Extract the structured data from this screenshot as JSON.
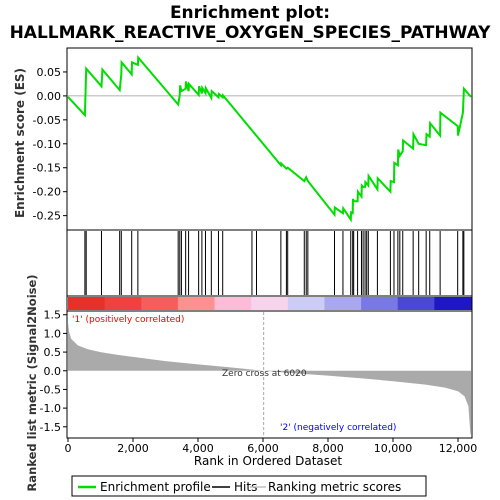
{
  "chart_data": {
    "type": "line",
    "title_line1": "Enrichment plot:",
    "title_line2": "HALLMARK_REACTIVE_OXYGEN_SPECIES_PATHWAY",
    "ylabel_top": "Enrichment score (ES)",
    "ylabel_bottom": "Ranked list metric (Signal2Noise)",
    "xlabel": "Rank in Ordered Dataset",
    "xlim": [
      0,
      12400
    ],
    "es_ylim": [
      -0.28,
      0.1
    ],
    "metric_ylim": [
      -1.8,
      1.6
    ],
    "x_ticks": [
      "0",
      "2,000",
      "4,000",
      "6,000",
      "8,000",
      "10,000",
      "12,000"
    ],
    "x_tick_values": [
      0,
      2000,
      4000,
      6000,
      8000,
      10000,
      12000
    ],
    "es_ticks": [
      "0.05",
      "0.00",
      "-0.05",
      "-0.10",
      "-0.15",
      "-0.20",
      "-0.25"
    ],
    "es_tick_values": [
      0.05,
      0.0,
      -0.05,
      -0.1,
      -0.15,
      -0.2,
      -0.25
    ],
    "metric_ticks": [
      "1.5",
      "1.0",
      "0.5",
      "0.0",
      "-0.5",
      "-1.0",
      "-1.5"
    ],
    "metric_tick_values": [
      1.5,
      1.0,
      0.5,
      0.0,
      -0.5,
      -1.0,
      -1.5
    ],
    "zero_cross_label": "Zero cross at 6020",
    "zero_cross": 6020,
    "pos_label": "'1' (positively correlated)",
    "neg_label": "'2' (negatively correlated)",
    "hits": [
      520,
      560,
      1030,
      1590,
      1640,
      1960,
      2150,
      3390,
      3440,
      3490,
      3620,
      3710,
      4020,
      4120,
      4230,
      4410,
      4630,
      4760,
      5660,
      5800,
      6550,
      6720,
      6760,
      7270,
      7330,
      7380,
      8200,
      8460,
      8700,
      8760,
      8790,
      8910,
      9030,
      9080,
      9140,
      9190,
      9240,
      9520,
      9920,
      10030,
      10150,
      10210,
      10300,
      10620,
      10790,
      11020,
      11130,
      11450,
      11990,
      12150,
      12180
    ],
    "es_values": [
      -0.002,
      -0.04,
      0.057,
      -0.015,
      0.055,
      0.012,
      0.07,
      0.045,
      0.07,
      0.08,
      -0.018,
      0.022,
      0.01,
      0.03,
      0.002,
      0.02,
      0.005,
      0.017,
      0.006,
      -0.004,
      -0.003,
      -0.145,
      -0.152,
      -0.15,
      -0.178,
      -0.17,
      -0.178,
      -0.248,
      -0.235,
      -0.258,
      -0.215,
      -0.22,
      -0.2,
      -0.21,
      -0.187,
      -0.19,
      -0.167,
      -0.195,
      -0.172,
      -0.2,
      -0.178,
      -0.14,
      -0.112,
      -0.125,
      -0.093,
      -0.11,
      -0.08,
      -0.1,
      -0.057,
      -0.083,
      -0.035,
      -0.063
    ],
    "es_points": [
      [
        0,
        -0.002
      ],
      [
        520,
        -0.04
      ],
      [
        560,
        0.057
      ],
      [
        1030,
        0.02
      ],
      [
        1060,
        0.055
      ],
      [
        1590,
        0.012
      ],
      [
        1640,
        0.045
      ],
      [
        1650,
        0.07
      ],
      [
        1960,
        0.045
      ],
      [
        1970,
        0.07
      ],
      [
        2150,
        0.065
      ],
      [
        2160,
        0.08
      ],
      [
        3390,
        -0.018
      ],
      [
        3440,
        0.002
      ],
      [
        3450,
        0.022
      ],
      [
        3490,
        0.01
      ],
      [
        3620,
        0.015
      ],
      [
        3630,
        0.03
      ],
      [
        3710,
        0.01
      ],
      [
        3720,
        0.025
      ],
      [
        4020,
        0.002
      ],
      [
        4030,
        0.02
      ],
      [
        4120,
        0.005
      ],
      [
        4130,
        0.017
      ],
      [
        4230,
        0.006
      ],
      [
        4240,
        0.016
      ],
      [
        4410,
        -0.004
      ],
      [
        4420,
        0.01
      ],
      [
        4630,
        -0.003
      ],
      [
        4640,
        0.004
      ],
      [
        4760,
        -0.003
      ],
      [
        4770,
        0.001
      ],
      [
        6550,
        -0.145
      ],
      [
        6560,
        -0.141
      ],
      [
        6720,
        -0.152
      ],
      [
        6760,
        -0.15
      ],
      [
        7270,
        -0.178
      ],
      [
        7330,
        -0.17
      ],
      [
        7380,
        -0.178
      ],
      [
        8200,
        -0.248
      ],
      [
        8210,
        -0.233
      ],
      [
        8460,
        -0.245
      ],
      [
        8470,
        -0.235
      ],
      [
        8700,
        -0.258
      ],
      [
        8710,
        -0.243
      ],
      [
        8760,
        -0.245
      ],
      [
        8770,
        -0.215
      ],
      [
        8790,
        -0.22
      ],
      [
        8910,
        -0.22
      ],
      [
        8920,
        -0.2
      ],
      [
        9030,
        -0.21
      ],
      [
        9040,
        -0.187
      ],
      [
        9080,
        -0.19
      ],
      [
        9140,
        -0.19
      ],
      [
        9150,
        -0.18
      ],
      [
        9190,
        -0.183
      ],
      [
        9240,
        -0.187
      ],
      [
        9250,
        -0.167
      ],
      [
        9520,
        -0.195
      ],
      [
        9530,
        -0.172
      ],
      [
        9920,
        -0.2
      ],
      [
        9930,
        -0.178
      ],
      [
        10030,
        -0.18
      ],
      [
        10040,
        -0.14
      ],
      [
        10150,
        -0.145
      ],
      [
        10160,
        -0.112
      ],
      [
        10210,
        -0.125
      ],
      [
        10300,
        -0.115
      ],
      [
        10310,
        -0.093
      ],
      [
        10620,
        -0.11
      ],
      [
        10630,
        -0.08
      ],
      [
        10790,
        -0.1
      ],
      [
        11020,
        -0.103
      ],
      [
        11030,
        -0.08
      ],
      [
        11130,
        -0.085
      ],
      [
        11140,
        -0.057
      ],
      [
        11450,
        -0.083
      ],
      [
        11460,
        -0.035
      ],
      [
        11990,
        -0.063
      ],
      [
        12000,
        -0.083
      ],
      [
        12150,
        -0.035
      ],
      [
        12180,
        0.015
      ],
      [
        12400,
        -0.002
      ]
    ],
    "metric_points": [
      [
        0,
        1.3
      ],
      [
        30,
        1.05
      ],
      [
        100,
        0.85
      ],
      [
        300,
        0.68
      ],
      [
        600,
        0.58
      ],
      [
        1000,
        0.5
      ],
      [
        1500,
        0.43
      ],
      [
        2000,
        0.37
      ],
      [
        3000,
        0.26
      ],
      [
        4000,
        0.17
      ],
      [
        5000,
        0.09
      ],
      [
        6020,
        0.0
      ],
      [
        7000,
        -0.07
      ],
      [
        8000,
        -0.13
      ],
      [
        9000,
        -0.2
      ],
      [
        10000,
        -0.28
      ],
      [
        11000,
        -0.37
      ],
      [
        11600,
        -0.45
      ],
      [
        12000,
        -0.55
      ],
      [
        12200,
        -0.68
      ],
      [
        12320,
        -0.95
      ],
      [
        12380,
        -1.7
      ],
      [
        12400,
        -1.7
      ]
    ],
    "bar_colors": [
      "#e8302a",
      "#f04040",
      "#f75d5d",
      "#fd9090",
      "#fcbcd8",
      "#f5d4ec",
      "#cdccf4",
      "#a8a7ef",
      "#7a78e6",
      "#4c48d6",
      "#1f16c4"
    ],
    "legend": {
      "items": [
        {
          "label": "Enrichment profile",
          "color": "#00dd00"
        },
        {
          "label": "Hits",
          "color": "#000000"
        },
        {
          "label": "Ranking metric scores",
          "color": "#c0c0c0"
        }
      ]
    },
    "colors": {
      "es_line": "#00dd00",
      "metric_fill": "#aaaaaa",
      "neg_label": "#0000ee",
      "pos_label": "#ee0000"
    }
  }
}
